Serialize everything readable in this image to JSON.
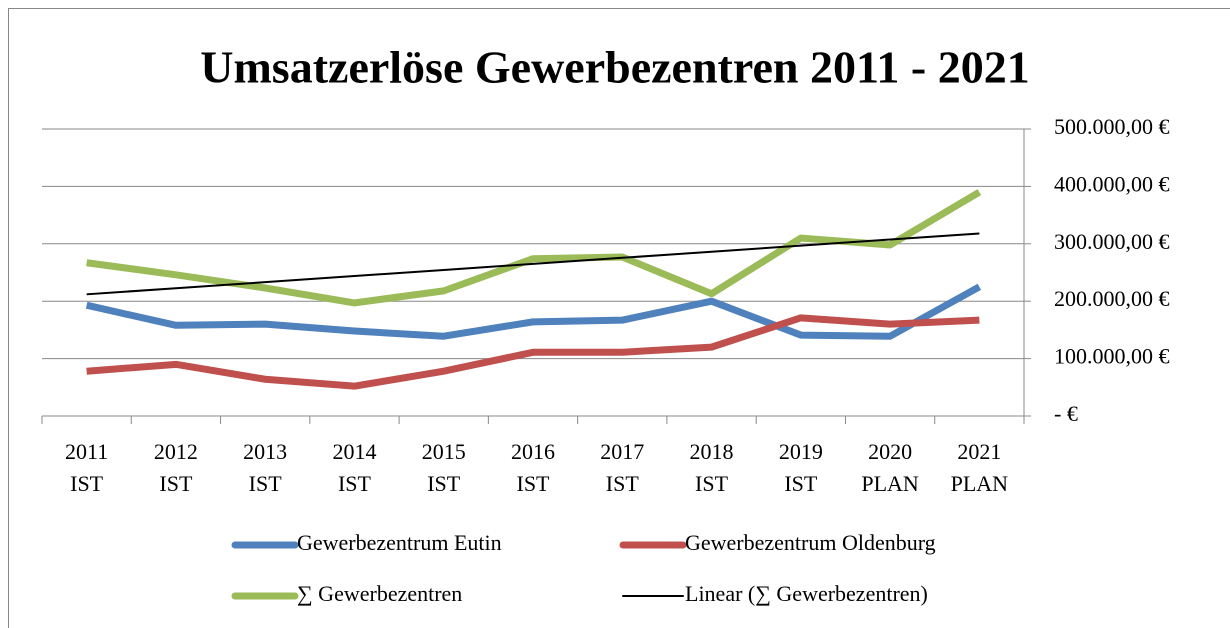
{
  "chart_data": {
    "type": "line",
    "title": "Umsatzerlöse Gewerbezentren 2011 - 2021",
    "categories": [
      "2011 IST",
      "2012 IST",
      "2013 IST",
      "2014 IST",
      "2015 IST",
      "2016 IST",
      "2017 IST",
      "2018 IST",
      "2019 IST",
      "2020 PLAN",
      "2021 PLAN"
    ],
    "series": [
      {
        "name": "Gewerbezentrum Eutin",
        "color": "#4f81bd",
        "width": 7,
        "values": [
          193000,
          158000,
          160000,
          148000,
          139000,
          164000,
          167000,
          200000,
          141000,
          139000,
          225000
        ]
      },
      {
        "name": "Gewerbezentrum Oldenburg",
        "color": "#c0504d",
        "width": 7,
        "values": [
          78000,
          90000,
          64000,
          52000,
          78000,
          111000,
          111000,
          120000,
          171000,
          160000,
          167000
        ]
      },
      {
        "name": "∑ Gewerbezentren",
        "color": "#9bbb59",
        "width": 7,
        "values": [
          267000,
          246000,
          223000,
          197000,
          218000,
          274000,
          277000,
          213000,
          310000,
          298000,
          390000
        ]
      },
      {
        "name": "Linear (∑ Gewerbezentren)",
        "color": "#000000",
        "width": 2,
        "values": [
          212000,
          222600,
          233200,
          243800,
          254400,
          265000,
          275600,
          286200,
          296800,
          307400,
          318000
        ]
      }
    ],
    "ylim": [
      0,
      500000
    ],
    "yticks": [
      {
        "value": 0,
        "label": "-   €"
      },
      {
        "value": 100000,
        "label": "100.000,00 €"
      },
      {
        "value": 200000,
        "label": "200.000,00 €"
      },
      {
        "value": 300000,
        "label": "300.000,00 €"
      },
      {
        "value": 400000,
        "label": "400.000,00 €"
      },
      {
        "value": 500000,
        "label": "500.000,00 €"
      }
    ],
    "grid": true,
    "legend": "bottom"
  }
}
